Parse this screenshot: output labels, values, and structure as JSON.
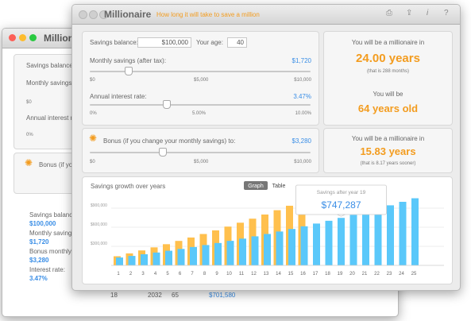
{
  "background_window": {
    "title": "Millionaire",
    "labels": [
      "Savings balance:",
      "Monthly savings (",
      "Annual interest rat",
      "Bonus (if you"
    ],
    "slider_labels": [
      "$0",
      "0%"
    ],
    "summary": [
      {
        "label": "Savings balance:",
        "value": "$100,000"
      },
      {
        "label": "Monthly savings:",
        "value": "$1,720"
      },
      {
        "label": "Bonus monthly sav",
        "value": "$3,280"
      },
      {
        "label": "Interest rate:",
        "value": "3.47%"
      }
    ],
    "table_row": [
      "18",
      "2032",
      "65",
      "$701,580"
    ]
  },
  "window": {
    "title": "Millionaire",
    "subtitle": "How long it will take to save a million"
  },
  "inputs": {
    "savings_balance_label": "Savings balance:",
    "savings_balance": "$100,000",
    "age_label": "Your age:",
    "age": "40",
    "monthly_label": "Monthly savings (after tax):",
    "monthly": "$1,720",
    "monthly_scale": [
      "$0",
      "$5,000",
      "$10,000"
    ],
    "interest_label": "Annual interest rate:",
    "interest": "3.47%",
    "interest_scale": [
      "0%",
      "5.00%",
      "10.00%"
    ],
    "bonus_label": "Bonus (if you change your monthly savings) to:",
    "bonus": "$3,280",
    "bonus_scale": [
      "$0",
      "$5,000",
      "$10,000"
    ]
  },
  "result": {
    "line1": "You will be a millionaire in",
    "years": "24.00 years",
    "note": "(that is 288 months)",
    "line2": "You will be",
    "age": "64 years old"
  },
  "bonus_result": {
    "line1": "You will be a millionaire in",
    "years": "15.83 years",
    "note": "(that is 8.17 years sooner)"
  },
  "chart_data": {
    "type": "bar",
    "title": "Savings growth over years",
    "tabs": [
      "Graph",
      "Table"
    ],
    "categories": [
      "1",
      "2",
      "3",
      "4",
      "5",
      "6",
      "7",
      "8",
      "9",
      "10",
      "11",
      "12",
      "13",
      "14",
      "15",
      "16",
      "17",
      "18",
      "19",
      "20",
      "21",
      "22",
      "23",
      "24",
      "25"
    ],
    "series": [
      {
        "color": "#5ac8fa",
        "values": [
          124000,
          149000,
          175000,
          202000,
          230000,
          259000,
          289000,
          320000,
          352000,
          386000,
          421000,
          457000,
          494000,
          533000,
          573000,
          615000,
          658000,
          701580,
          747287,
          794000,
          843000,
          893000,
          945000,
          1000000,
          1056000
        ],
        "value_labels": [
          null,
          null,
          null,
          null,
          null,
          null,
          null,
          null,
          null,
          null,
          null,
          null,
          null,
          null,
          null,
          null,
          null,
          null,
          "$747,287",
          null,
          null,
          null,
          null,
          null,
          null
        ]
      },
      {
        "color": "#ffc04d",
        "values": [
          143500,
          188600,
          235200,
          283400,
          333300,
          385000,
          438400,
          493700,
          550900,
          610100,
          671300,
          734700,
          800200,
          868100,
          938300,
          1010900,
          null,
          null,
          null,
          null,
          null,
          null,
          null,
          null,
          null
        ]
      }
    ],
    "annotation": "Savings after year 19",
    "ylim": [
      0,
      1100000
    ],
    "yticks": [
      {
        "value": 300000,
        "label": "$300,000"
      },
      {
        "value": 600000,
        "label": "$600,000"
      },
      {
        "value": 900000,
        "label": "$900,000"
      }
    ],
    "grid": true
  }
}
